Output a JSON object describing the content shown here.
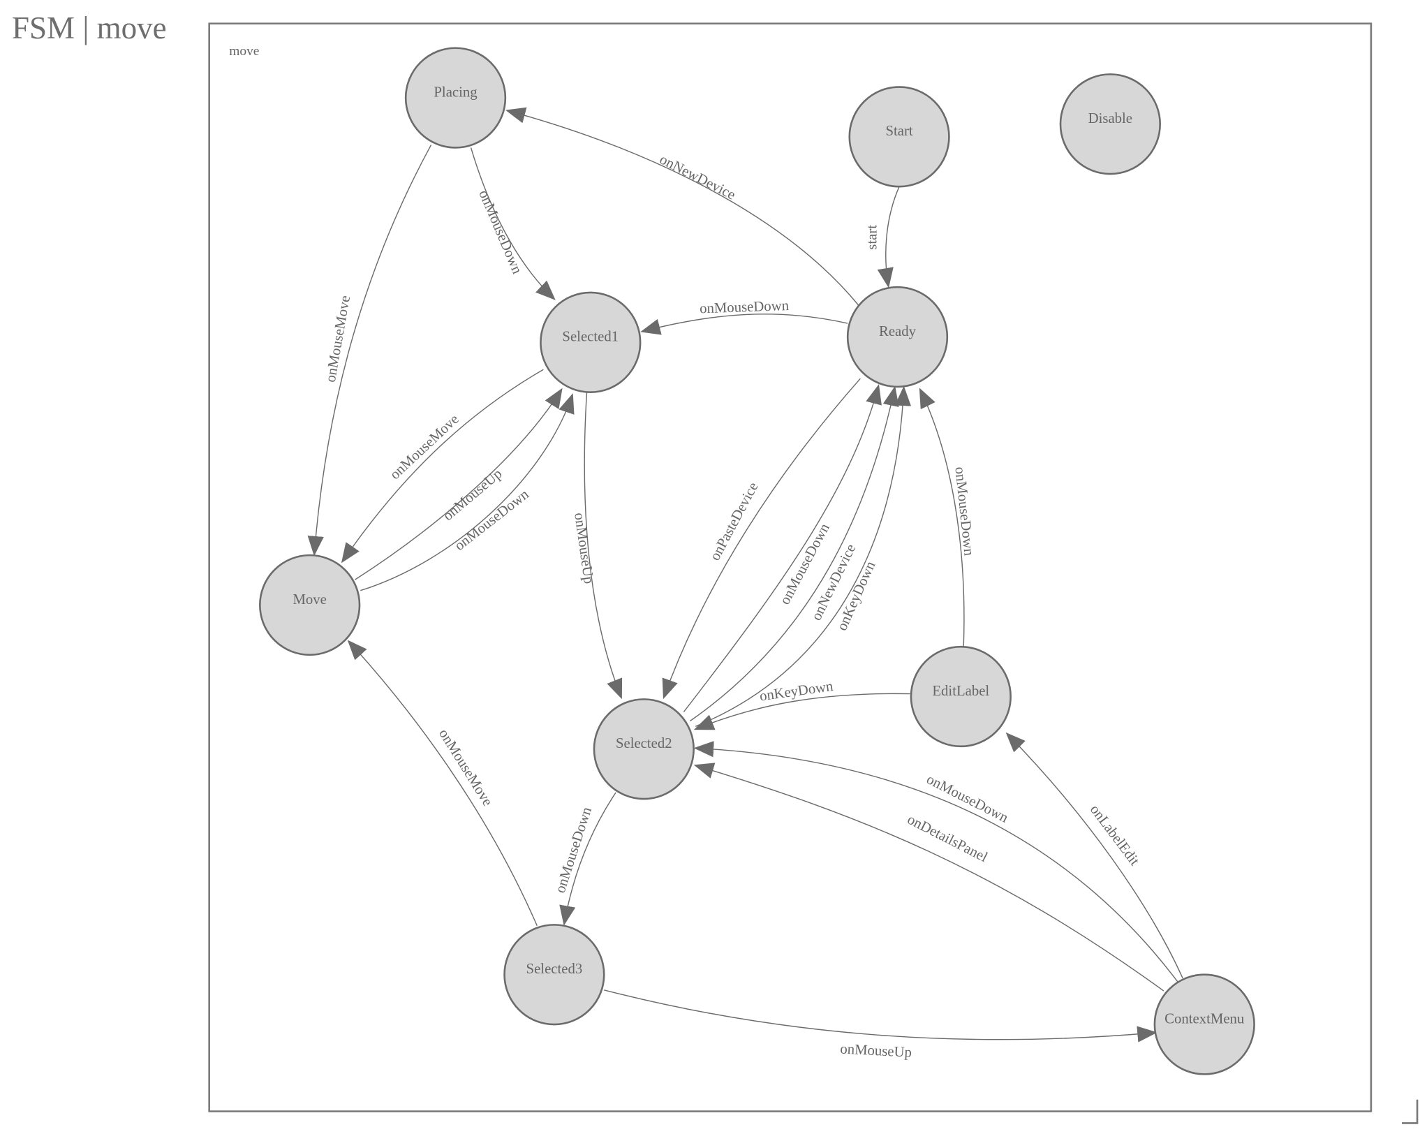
{
  "title": "FSM | move",
  "diagram": {
    "frame_label": "move",
    "colors": {
      "node_fill": "#d7d7d7",
      "stroke": "#6b6b6b",
      "text": "#666666"
    },
    "states": [
      "Placing",
      "Start",
      "Disable",
      "Ready",
      "Selected1",
      "Move",
      "Selected2",
      "EditLabel",
      "Selected3",
      "ContextMenu"
    ],
    "transitions": [
      {
        "from": "Start",
        "to": "Ready",
        "label": "start"
      },
      {
        "from": "Ready",
        "to": "Placing",
        "label": "onNewDevice"
      },
      {
        "from": "Placing",
        "to": "Selected1",
        "label": "onMouseDown"
      },
      {
        "from": "Placing",
        "to": "Move",
        "label": "onMouseMove"
      },
      {
        "from": "Ready",
        "to": "Selected1",
        "label": "onMouseDown"
      },
      {
        "from": "Selected1",
        "to": "Move",
        "label": "onMouseMove"
      },
      {
        "from": "Move",
        "to": "Selected1",
        "label": "onMouseUp"
      },
      {
        "from": "Move",
        "to": "Selected1",
        "label": "onMouseDown"
      },
      {
        "from": "Selected1",
        "to": "Selected2",
        "label": "onMouseUp"
      },
      {
        "from": "Ready",
        "to": "Selected2",
        "label": "onPasteDevice"
      },
      {
        "from": "Selected2",
        "to": "Ready",
        "label": "onMouseDown"
      },
      {
        "from": "Selected2",
        "to": "Ready",
        "label": "onNewDevice"
      },
      {
        "from": "Selected2",
        "to": "Ready",
        "label": "onKeyDown"
      },
      {
        "from": "EditLabel",
        "to": "Ready",
        "label": "onMouseDown"
      },
      {
        "from": "EditLabel",
        "to": "Selected2",
        "label": "onKeyDown"
      },
      {
        "from": "Selected2",
        "to": "Selected3",
        "label": "onMouseDown"
      },
      {
        "from": "Selected3",
        "to": "Move",
        "label": "onMouseMove"
      },
      {
        "from": "Selected3",
        "to": "ContextMenu",
        "label": "onMouseUp"
      },
      {
        "from": "ContextMenu",
        "to": "EditLabel",
        "label": "onLabelEdit"
      },
      {
        "from": "ContextMenu",
        "to": "Selected2",
        "label": "onMouseDown"
      },
      {
        "from": "ContextMenu",
        "to": "Selected2",
        "label": "onDetailsPanel"
      }
    ]
  }
}
